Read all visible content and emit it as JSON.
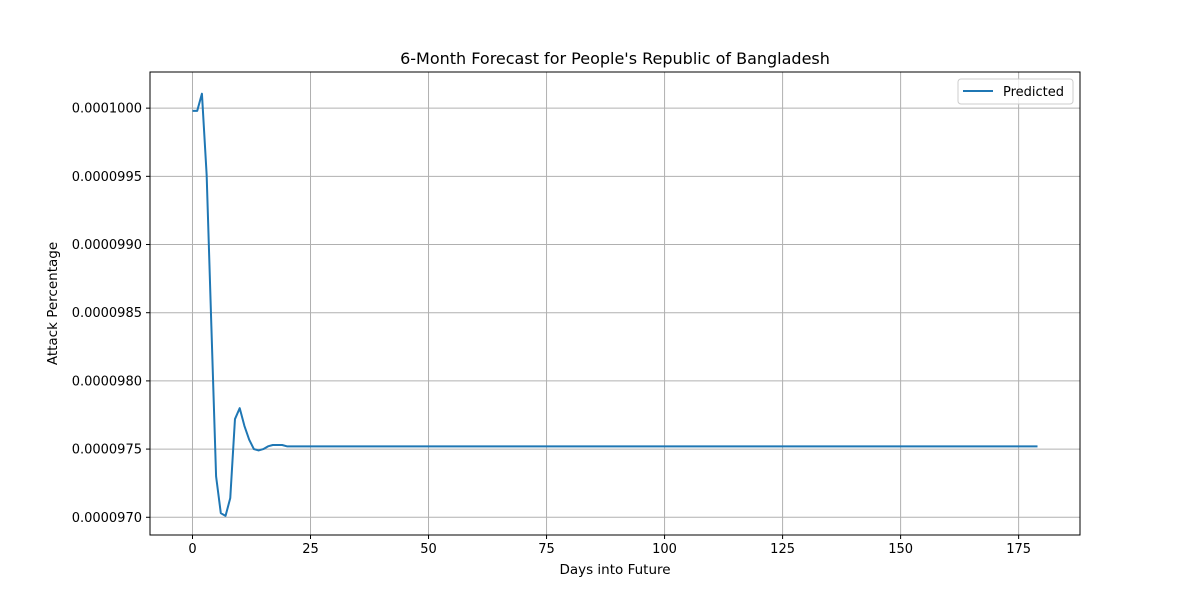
{
  "chart_data": {
    "type": "line",
    "title": "6-Month Forecast for People's Republic of Bangladesh",
    "xlabel": "Days into Future",
    "ylabel": "Attack Percentage",
    "xlim": [
      -9,
      188
    ],
    "ylim": [
      9.687e-05,
      0.000100265
    ],
    "x_ticks": [
      0,
      25,
      50,
      75,
      100,
      125,
      150,
      175
    ],
    "x_tick_labels": [
      "0",
      "25",
      "50",
      "75",
      "100",
      "125",
      "150",
      "175"
    ],
    "y_ticks": [
      9.7e-05,
      9.75e-05,
      9.8e-05,
      9.85e-05,
      9.9e-05,
      9.95e-05,
      0.0001
    ],
    "y_tick_labels": [
      "0.0000970",
      "0.0000975",
      "0.0000980",
      "0.0000985",
      "0.0000990",
      "0.0000995",
      "0.0001000"
    ],
    "grid": true,
    "legend_position": "top-right",
    "series": [
      {
        "name": "Predicted",
        "color": "#1f77b4",
        "x": [
          0,
          1,
          2,
          3,
          4,
          5,
          6,
          7,
          8,
          9,
          10,
          11,
          12,
          13,
          14,
          15,
          16,
          17,
          18,
          19,
          20,
          21,
          22,
          25,
          30,
          40,
          50,
          75,
          100,
          125,
          150,
          175,
          179
        ],
        "y": [
          9.998e-05,
          9.998e-05,
          0.000100106,
          9.951e-05,
          9.84e-05,
          9.73e-05,
          9.703e-05,
          9.701e-05,
          9.714e-05,
          9.772e-05,
          9.78e-05,
          9.767e-05,
          9.757e-05,
          9.75e-05,
          9.749e-05,
          9.75e-05,
          9.752e-05,
          9.753e-05,
          9.753e-05,
          9.753e-05,
          9.752e-05,
          9.752e-05,
          9.752e-05,
          9.752e-05,
          9.752e-05,
          9.752e-05,
          9.752e-05,
          9.752e-05,
          9.752e-05,
          9.752e-05,
          9.752e-05,
          9.752e-05,
          9.752e-05
        ]
      }
    ]
  }
}
